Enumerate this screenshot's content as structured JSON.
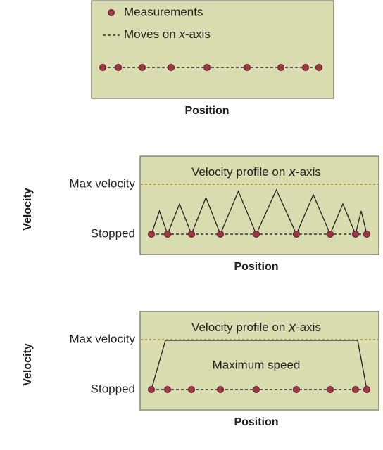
{
  "legend": {
    "measurements": "Measurements",
    "moves": [
      "Moves on ",
      "x",
      "-axis"
    ]
  },
  "top": {
    "xlabel": "Position"
  },
  "panels": [
    {
      "ylabel": "Velocity",
      "max": "Max velocity",
      "stopped": "Stopped",
      "title": [
        "Velocity profile on ",
        "x",
        "-axis"
      ],
      "xlabel": "Position"
    },
    {
      "ylabel": "Velocity",
      "max": "Max velocity",
      "stopped": "Stopped",
      "title": [
        "Velocity profile on ",
        "x",
        "-axis"
      ],
      "note": "Maximum speed",
      "xlabel": "Position"
    }
  ]
}
